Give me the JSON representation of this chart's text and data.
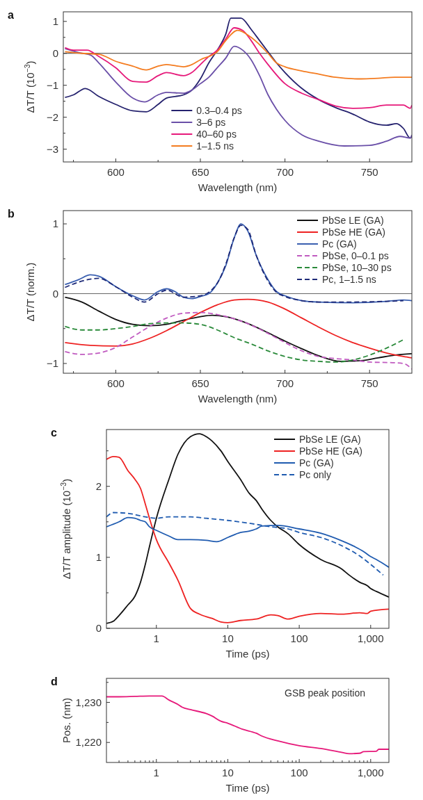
{
  "chart_data": [
    {
      "type": "line",
      "title": "a",
      "xlabel": "Wavelength (nm)",
      "ylabel": "ΔT/T (10$^{−3}$)",
      "xlim": [
        569,
        775
      ],
      "ylim": [
        -3.4,
        1.3
      ],
      "xticks": [
        {
          "value": 575,
          "label": null
        },
        600,
        {
          "value": 625,
          "label": null
        },
        650,
        {
          "value": 675,
          "label": null
        },
        700,
        {
          "value": 725,
          "label": null
        },
        750
      ],
      "yticks": [
        {
          "value": -3,
          "label": "−3"
        },
        {
          "value": -2.5,
          "label": null
        },
        {
          "value": -2,
          "label": "−2"
        },
        {
          "value": -1.5,
          "label": null
        },
        {
          "value": -1,
          "label": "−1"
        },
        {
          "value": -0.5,
          "label": null
        },
        0,
        {
          "value": 0.5,
          "label": null
        },
        1
      ],
      "ref_lines": [
        {
          "axis": "y",
          "value": 0,
          "color": "#333333"
        }
      ],
      "legend": "bottom",
      "series": [
        {
          "name": "0.3–0.4 ps",
          "color": "#25226e",
          "x": [
            570,
            575,
            582,
            590,
            600,
            610,
            618,
            625,
            630,
            640,
            645,
            650,
            655,
            660,
            665,
            668,
            674,
            680,
            685,
            690,
            695,
            700,
            710,
            720,
            730,
            740,
            750,
            760,
            766,
            770,
            774,
            775
          ],
          "values": [
            -1.38,
            -1.3,
            -1.1,
            -1.35,
            -1.6,
            -1.8,
            -1.83,
            -1.6,
            -1.4,
            -1.3,
            -1.15,
            -0.8,
            -0.3,
            0.1,
            0.6,
            1.1,
            1.1,
            0.75,
            0.4,
            0.05,
            -0.3,
            -0.6,
            -1.1,
            -1.45,
            -1.7,
            -1.9,
            -2.15,
            -2.25,
            -2.2,
            -2.35,
            -2.65,
            -2.6
          ]
        },
        {
          "name": "3–6 ps",
          "color": "#6a4fa8",
          "x": [
            570,
            580,
            585,
            590,
            600,
            610,
            617,
            625,
            630,
            640,
            645,
            650,
            655,
            660,
            665,
            670,
            675,
            680,
            685,
            690,
            695,
            700,
            710,
            720,
            735,
            750,
            760,
            768,
            774,
            775
          ],
          "values": [
            0.15,
            0,
            -0.05,
            -0.3,
            -0.9,
            -1.4,
            -1.52,
            -1.3,
            -1.22,
            -1.25,
            -1.15,
            -0.95,
            -0.75,
            -0.45,
            -0.15,
            0.22,
            0.1,
            -0.2,
            -0.7,
            -1.3,
            -1.75,
            -2.1,
            -2.55,
            -2.75,
            -2.9,
            -2.88,
            -2.75,
            -2.6,
            -2.65,
            -2.55
          ]
        },
        {
          "name": "40–60 ps",
          "color": "#e6197a",
          "x": [
            570,
            575,
            583,
            590,
            600,
            610,
            618,
            625,
            630,
            640,
            645,
            650,
            655,
            660,
            665,
            670,
            675,
            680,
            685,
            690,
            700,
            710,
            720,
            730,
            740,
            750,
            760,
            770,
            774,
            775
          ],
          "values": [
            0.18,
            0.1,
            0.1,
            -0.1,
            -0.45,
            -0.88,
            -0.9,
            -0.7,
            -0.6,
            -0.7,
            -0.6,
            -0.35,
            -0.1,
            0.1,
            0.45,
            0.8,
            0.72,
            0.4,
            0,
            -0.35,
            -0.95,
            -1.25,
            -1.45,
            -1.65,
            -1.72,
            -1.7,
            -1.62,
            -1.62,
            -1.72,
            -1.62
          ]
        },
        {
          "name": "1–1.5 ns",
          "color": "#f47c20",
          "x": [
            570,
            580,
            590,
            600,
            610,
            618,
            625,
            630,
            640,
            645,
            650,
            660,
            665,
            672,
            680,
            690,
            695,
            700,
            710,
            720,
            730,
            745,
            755,
            765,
            775
          ],
          "values": [
            0.05,
            0,
            -0.03,
            -0.25,
            -0.4,
            -0.52,
            -0.4,
            -0.35,
            -0.42,
            -0.35,
            -0.2,
            0.05,
            0.4,
            0.72,
            0.5,
            0,
            -0.3,
            -0.42,
            -0.55,
            -0.65,
            -0.75,
            -0.8,
            -0.78,
            -0.75,
            -0.75
          ]
        }
      ]
    },
    {
      "type": "line",
      "title": "b",
      "xlabel": "Wavelength (nm)",
      "ylabel": "ΔT/T (norm.)",
      "xlim": [
        569,
        775
      ],
      "ylim": [
        -1.14,
        1.19
      ],
      "xticks": [
        {
          "value": 575,
          "label": null
        },
        600,
        {
          "value": 625,
          "label": null
        },
        650,
        {
          "value": 675,
          "label": null
        },
        700,
        {
          "value": 725,
          "label": null
        },
        750
      ],
      "yticks": [
        {
          "value": -1,
          "label": "−1"
        },
        {
          "value": -0.5,
          "label": null
        },
        0,
        {
          "value": 0.5,
          "label": null
        },
        1
      ],
      "ref_lines": [
        {
          "axis": "y",
          "value": 0,
          "color": "#666666"
        }
      ],
      "legend": "top right",
      "series": [
        {
          "name": "PbSe LE (GA)",
          "color": "#111111",
          "x": [
            570,
            580,
            590,
            600,
            610,
            620,
            630,
            640,
            650,
            657,
            665,
            675,
            690,
            700,
            710,
            720,
            733,
            745,
            755,
            765,
            775
          ],
          "values": [
            -0.05,
            -0.12,
            -0.25,
            -0.37,
            -0.44,
            -0.46,
            -0.44,
            -0.38,
            -0.33,
            -0.31,
            -0.33,
            -0.4,
            -0.56,
            -0.68,
            -0.79,
            -0.89,
            -0.97,
            -0.96,
            -0.92,
            -0.88,
            -0.86
          ]
        },
        {
          "name": "PbSe HE (GA)",
          "color": "#ee2222",
          "x": [
            570,
            585,
            600,
            610,
            620,
            630,
            640,
            650,
            660,
            670,
            678,
            690,
            700,
            710,
            720,
            730,
            740,
            750,
            760,
            770,
            775
          ],
          "values": [
            -0.7,
            -0.74,
            -0.75,
            -0.72,
            -0.64,
            -0.53,
            -0.4,
            -0.27,
            -0.16,
            -0.09,
            -0.08,
            -0.12,
            -0.22,
            -0.35,
            -0.48,
            -0.6,
            -0.7,
            -0.78,
            -0.85,
            -0.9,
            -0.92
          ]
        },
        {
          "name": "Pc (GA)",
          "color": "#3a5fb0",
          "x": [
            570,
            578,
            585,
            590,
            600,
            610,
            617,
            625,
            630,
            635,
            640,
            645,
            650,
            655,
            660,
            665,
            670,
            674,
            678,
            683,
            690,
            695,
            700,
            710,
            720,
            740,
            760,
            770,
            775
          ],
          "values": [
            0.13,
            0.2,
            0.27,
            0.25,
            0.1,
            -0.03,
            -0.09,
            0.03,
            0.07,
            0.03,
            -0.05,
            -0.07,
            -0.04,
            0,
            0.15,
            0.4,
            0.8,
            1,
            0.9,
            0.55,
            0.2,
            0.03,
            -0.03,
            -0.1,
            -0.12,
            -0.13,
            -0.11,
            -0.09,
            -0.1
          ]
        },
        {
          "name": "PbSe, 0–0.1 ps",
          "color": "#c05ac0",
          "line_style": "dashed",
          "x": [
            570,
            580,
            590,
            600,
            610,
            620,
            630,
            640,
            650,
            660,
            670,
            680,
            690,
            700,
            710,
            720,
            730,
            740,
            750,
            765,
            770,
            775
          ],
          "values": [
            -0.83,
            -0.87,
            -0.85,
            -0.77,
            -0.62,
            -0.47,
            -0.35,
            -0.28,
            -0.27,
            -0.3,
            -0.36,
            -0.45,
            -0.57,
            -0.7,
            -0.82,
            -0.9,
            -0.93,
            -0.95,
            -0.98,
            -0.99,
            -1,
            -1.08
          ]
        },
        {
          "name": "PbSe, 10–30 ps",
          "color": "#2a8a3a",
          "line_style": "dashed",
          "x": [
            570,
            580,
            590,
            600,
            610,
            620,
            630,
            640,
            650,
            660,
            670,
            680,
            690,
            700,
            710,
            720,
            730,
            740,
            750,
            760,
            770
          ],
          "values": [
            -0.47,
            -0.52,
            -0.52,
            -0.5,
            -0.47,
            -0.43,
            -0.42,
            -0.42,
            -0.44,
            -0.52,
            -0.63,
            -0.72,
            -0.82,
            -0.9,
            -0.95,
            -0.97,
            -0.98,
            -0.95,
            -0.88,
            -0.78,
            -0.66
          ]
        },
        {
          "name": "Pc, 1–1.5 ns",
          "color": "#1e2a78",
          "line_style": "dashed",
          "x": [
            570,
            580,
            590,
            600,
            610,
            617,
            625,
            630,
            640,
            650,
            660,
            665,
            670,
            674,
            678,
            683,
            690,
            695,
            700,
            710,
            720,
            740,
            760,
            770
          ],
          "values": [
            0.09,
            0.18,
            0.22,
            0.1,
            -0.05,
            -0.12,
            0,
            0.05,
            -0.05,
            -0.03,
            0.15,
            0.42,
            0.8,
            0.98,
            0.92,
            0.55,
            0.18,
            0.02,
            -0.04,
            -0.1,
            -0.12,
            -0.12,
            -0.11,
            -0.1
          ]
        }
      ]
    },
    {
      "type": "line",
      "title": "c",
      "xlabel": "Time (ps)",
      "ylabel": "ΔT/T amplitude (10$^{−3}$)",
      "log": "x",
      "xlim": [
        0.2,
        1800
      ],
      "ylim": [
        0,
        2.8
      ],
      "xticks": [
        1,
        10,
        100,
        {
          "value": 1000,
          "label": "1,000"
        }
      ],
      "yticks": [
        0,
        {
          "value": 0.5,
          "label": null
        },
        1,
        {
          "value": 1.5,
          "label": null
        },
        2,
        {
          "value": 2.5,
          "label": null
        }
      ],
      "legend": "top right",
      "series": [
        {
          "name": "PbSe LE (GA)",
          "color": "#111111",
          "x": [
            0.2,
            0.25,
            0.3,
            0.4,
            0.5,
            0.6,
            0.7,
            0.8,
            1,
            1.5,
            2,
            3,
            4,
            5,
            6,
            8,
            10,
            15,
            20,
            25,
            30,
            40,
            50,
            70,
            100,
            200,
            400,
            500,
            700,
            900,
            1000,
            1200,
            1800
          ],
          "values": [
            0.07,
            0.1,
            0.18,
            0.33,
            0.45,
            0.65,
            0.9,
            1.15,
            1.55,
            2.1,
            2.45,
            2.7,
            2.74,
            2.7,
            2.64,
            2.5,
            2.35,
            2.1,
            1.9,
            1.8,
            1.68,
            1.52,
            1.43,
            1.33,
            1.18,
            0.97,
            0.83,
            0.75,
            0.65,
            0.6,
            0.56,
            0.52,
            0.44
          ]
        },
        {
          "name": "PbSe HE (GA)",
          "color": "#ee2222",
          "x": [
            0.2,
            0.25,
            0.3,
            0.4,
            0.5,
            0.6,
            0.7,
            0.8,
            1,
            1.5,
            2,
            3,
            4,
            6,
            8,
            10,
            15,
            25,
            40,
            50,
            70,
            100,
            200,
            400,
            700,
            900,
            1000,
            1800
          ],
          "values": [
            2.38,
            2.42,
            2.41,
            2.22,
            2.1,
            1.97,
            1.75,
            1.55,
            1.25,
            0.92,
            0.68,
            0.28,
            0.2,
            0.14,
            0.09,
            0.08,
            0.11,
            0.13,
            0.19,
            0.18,
            0.13,
            0.17,
            0.21,
            0.2,
            0.22,
            0.21,
            0.24,
            0.27
          ]
        },
        {
          "name": "Pc (GA)",
          "color": "#1f5bb0",
          "x": [
            0.2,
            0.3,
            0.4,
            0.5,
            0.6,
            0.7,
            0.8,
            1,
            1.5,
            2,
            3,
            5,
            7,
            10,
            15,
            20,
            25,
            30,
            50,
            100,
            200,
            400,
            600,
            800,
            1000,
            1200,
            1800
          ],
          "values": [
            1.43,
            1.5,
            1.56,
            1.55,
            1.52,
            1.5,
            1.43,
            1.38,
            1.3,
            1.25,
            1.25,
            1.24,
            1.22,
            1.28,
            1.35,
            1.37,
            1.4,
            1.44,
            1.45,
            1.4,
            1.34,
            1.23,
            1.15,
            1.08,
            1.01,
            0.97,
            0.86
          ]
        },
        {
          "name": "Pc only",
          "color": "#1f5bb0",
          "line_style": "dashed",
          "x": [
            0.2,
            0.25,
            0.4,
            0.7,
            1,
            1.5,
            3,
            5,
            10,
            20,
            40,
            70,
            100,
            200,
            400,
            700,
            1000,
            1500
          ],
          "values": [
            1.57,
            1.63,
            1.62,
            1.57,
            1.55,
            1.57,
            1.57,
            1.55,
            1.52,
            1.48,
            1.43,
            1.4,
            1.35,
            1.28,
            1.16,
            1.02,
            0.9,
            0.75
          ]
        }
      ]
    },
    {
      "type": "line",
      "title": "d",
      "xlabel": "Time (ps)",
      "ylabel": "Pos. (nm)",
      "log": "x",
      "xlim": [
        0.2,
        1800
      ],
      "ylim": [
        1215,
        1236
      ],
      "xticks": [
        {
          "value": 0.3,
          "label": null
        },
        {
          "value": 0.4,
          "label": null
        },
        {
          "value": 0.5,
          "label": null
        },
        {
          "value": 0.6,
          "label": null
        },
        {
          "value": 0.7,
          "label": null
        },
        {
          "value": 0.8,
          "label": null
        },
        {
          "value": 0.9,
          "label": null
        },
        1,
        {
          "value": 2,
          "label": null
        },
        {
          "value": 3,
          "label": null
        },
        {
          "value": 4,
          "label": null
        },
        {
          "value": 5,
          "label": null
        },
        {
          "value": 6,
          "label": null
        },
        {
          "value": 7,
          "label": null
        },
        {
          "value": 8,
          "label": null
        },
        {
          "value": 9,
          "label": null
        },
        10,
        {
          "value": 20,
          "label": null
        },
        {
          "value": 30,
          "label": null
        },
        {
          "value": 40,
          "label": null
        },
        {
          "value": 50,
          "label": null
        },
        {
          "value": 60,
          "label": null
        },
        {
          "value": 70,
          "label": null
        },
        {
          "value": 80,
          "label": null
        },
        {
          "value": 90,
          "label": null
        },
        100,
        {
          "value": 200,
          "label": null
        },
        {
          "value": 300,
          "label": null
        },
        {
          "value": 400,
          "label": null
        },
        {
          "value": 500,
          "label": null
        },
        {
          "value": 600,
          "label": null
        },
        {
          "value": 700,
          "label": null
        },
        {
          "value": 800,
          "label": null
        },
        {
          "value": 900,
          "label": null
        },
        {
          "value": 1000,
          "label": "1,000"
        }
      ],
      "yticks": [
        {
          "value": 1220,
          "label": "1,220"
        },
        {
          "value": 1225,
          "label": null
        },
        {
          "value": 1230,
          "label": "1,230"
        },
        {
          "value": 1235,
          "label": null
        }
      ],
      "annotations": [
        "GSB peak position"
      ],
      "series": [
        {
          "color": "#e6197a",
          "x": [
            0.2,
            0.3,
            0.5,
            0.8,
            1.2,
            1.5,
            2,
            2.3,
            3,
            5,
            6,
            8,
            10,
            16,
            25,
            30,
            50,
            100,
            200,
            400,
            500,
            700,
            800,
            1200,
            1300,
            1800
          ],
          "values": [
            1231.4,
            1231.4,
            1231.5,
            1231.6,
            1231.6,
            1230.6,
            1229.5,
            1228.8,
            1228.2,
            1227.2,
            1226.6,
            1225.3,
            1224.8,
            1223.3,
            1222.3,
            1221.6,
            1220.4,
            1219.2,
            1218.5,
            1217.5,
            1217.2,
            1217.3,
            1217.7,
            1217.8,
            1218.3,
            1218.3
          ]
        }
      ]
    }
  ]
}
